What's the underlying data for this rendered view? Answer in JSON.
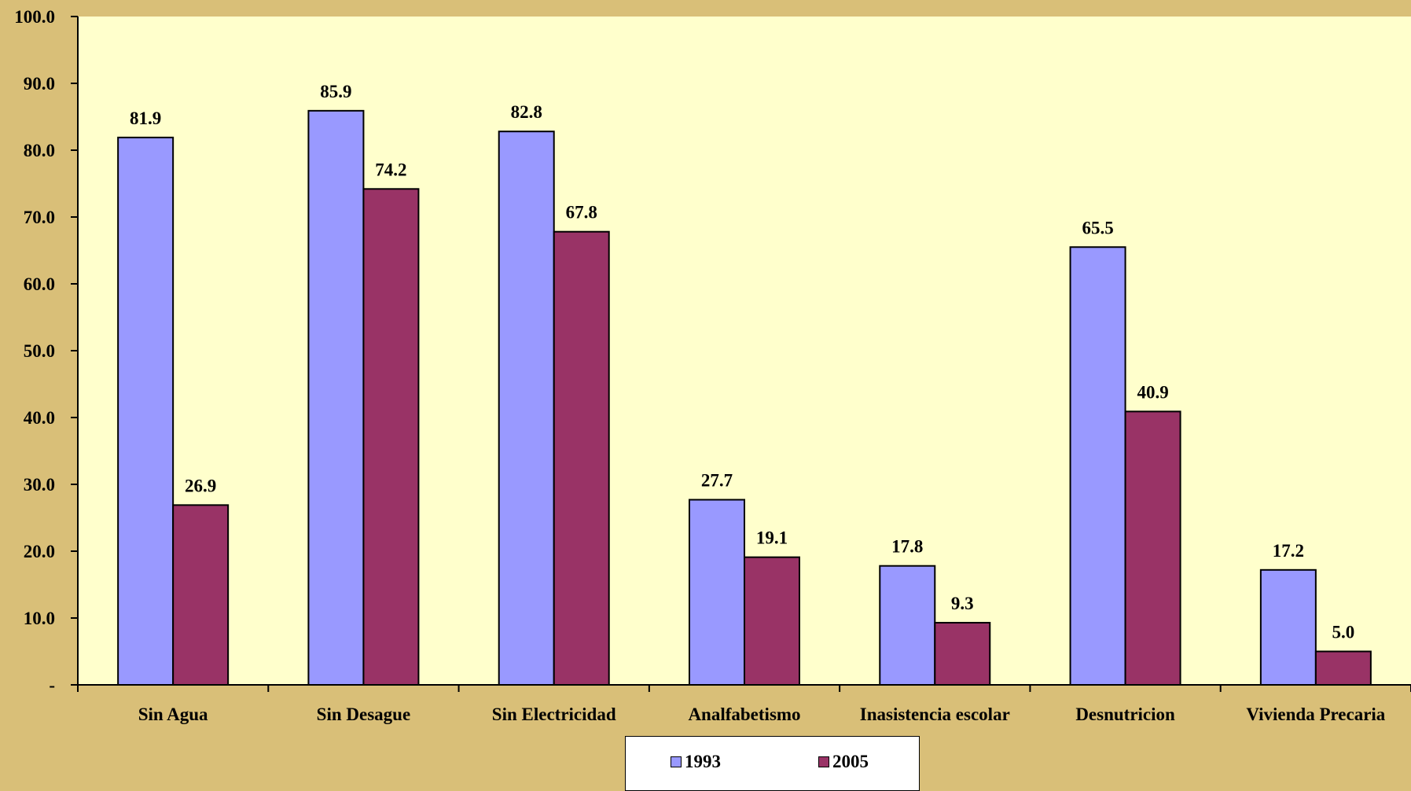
{
  "chart_data": {
    "type": "bar",
    "categories": [
      "Sin Agua",
      "Sin Desague",
      "Sin Electricidad",
      "Analfabetismo",
      "Inasistencia escolar",
      "Desnutricion",
      "Vivienda Precaria"
    ],
    "series": [
      {
        "name": "1993",
        "values": [
          81.9,
          85.9,
          82.8,
          27.7,
          17.8,
          65.5,
          17.2
        ],
        "labels": [
          "81.9",
          "85.9",
          "82.8",
          "27.7",
          "17.8",
          "65.5",
          "17.2"
        ],
        "color": "#9999FF"
      },
      {
        "name": "2005",
        "values": [
          26.9,
          74.2,
          67.8,
          19.1,
          9.3,
          40.9,
          5.0
        ],
        "labels": [
          "26.9",
          "74.2",
          "67.8",
          "19.1",
          "9.3",
          "40.9",
          "5.0"
        ],
        "color": "#993366"
      }
    ],
    "ylim": [
      0,
      100
    ],
    "yticks": [
      0,
      10,
      20,
      30,
      40,
      50,
      60,
      70,
      80,
      90,
      100
    ],
    "ytick_labels": [
      "-",
      "10.0",
      "20.0",
      "30.0",
      "40.0",
      "50.0",
      "60.0",
      "70.0",
      "80.0",
      "90.0",
      "100.0"
    ],
    "plot_background": "#FFFFCC",
    "figure_background": "#D9BF78",
    "grid": false,
    "legend_position": "bottom"
  }
}
